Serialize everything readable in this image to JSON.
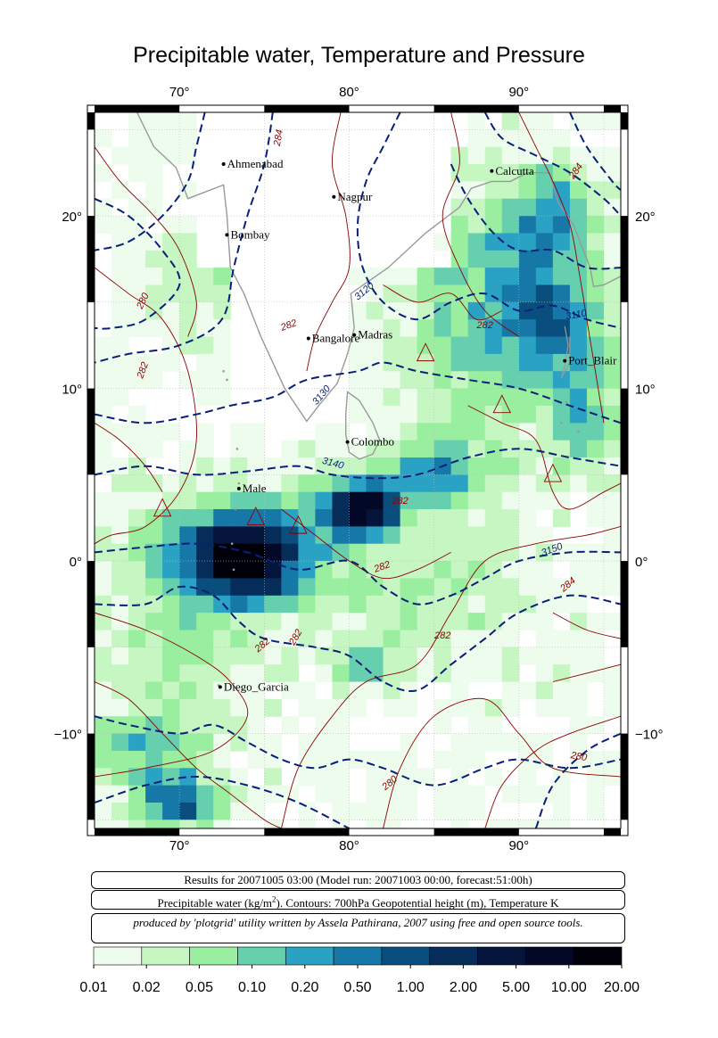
{
  "title": "Precipitable water, Temperature and Pressure",
  "map": {
    "lon_range": [
      65,
      96
    ],
    "lat_range": [
      -15.5,
      26
    ],
    "lon_ticks": [
      70,
      80,
      90
    ],
    "lat_ticks": [
      20,
      10,
      0,
      -10
    ],
    "lon_tick_labels": [
      "70°",
      "80°",
      "90°"
    ],
    "lat_tick_labels": [
      "20°",
      "10°",
      "0°",
      "−10°"
    ],
    "cities": [
      {
        "name": "Ahmenabad",
        "lon": 72.6,
        "lat": 23.0
      },
      {
        "name": "Nagpur",
        "lon": 79.1,
        "lat": 21.1
      },
      {
        "name": "Calcutta",
        "lon": 88.4,
        "lat": 22.6
      },
      {
        "name": "Bombay",
        "lon": 72.8,
        "lat": 18.9
      },
      {
        "name": "Bangalore",
        "lon": 77.6,
        "lat": 12.9
      },
      {
        "name": "Madras",
        "lon": 80.3,
        "lat": 13.1
      },
      {
        "name": "Port_Blair",
        "lon": 92.7,
        "lat": 11.6
      },
      {
        "name": "Colombo",
        "lon": 79.9,
        "lat": 6.9
      },
      {
        "name": "Male",
        "lon": 73.5,
        "lat": 4.2
      },
      {
        "name": "Diego_Garcia",
        "lon": 72.4,
        "lat": -7.3
      }
    ],
    "height_contour_labels": [
      "3120",
      "3110",
      "3130",
      "3140",
      "3150"
    ],
    "temperature_contour_labels": [
      "284",
      "282",
      "280"
    ],
    "colors": {
      "coast": "#999999",
      "height_contour": "#0a1f7a",
      "temperature_contour": "#8b0000",
      "grid": "#bbbbbb"
    }
  },
  "info": {
    "line1": "Results for 20071005 03:00 (Model run: 20071003 00:00, forecast:51:00h)",
    "line2_pre": "Precipitable water (kg/m",
    "line2_sup": "2",
    "line2_post": ").  Contours: 700hPa Geopotential height (m), Temperature K",
    "credit": "produced by 'plotgrid' utility written by Assela Pathirana, 2007 using free and open source tools."
  },
  "legend": {
    "colors": [
      "#eefcee",
      "#c6f6c2",
      "#9aeea0",
      "#66cfae",
      "#2aa2c4",
      "#1678a6",
      "#0a4e7e",
      "#062c5a",
      "#04143a",
      "#020826",
      "#000008"
    ],
    "labels": [
      "0.01",
      "0.02",
      "0.05",
      "0.10",
      "0.20",
      "0.50",
      "1.00",
      "2.00",
      "5.00",
      "10.00",
      "20.00"
    ]
  }
}
